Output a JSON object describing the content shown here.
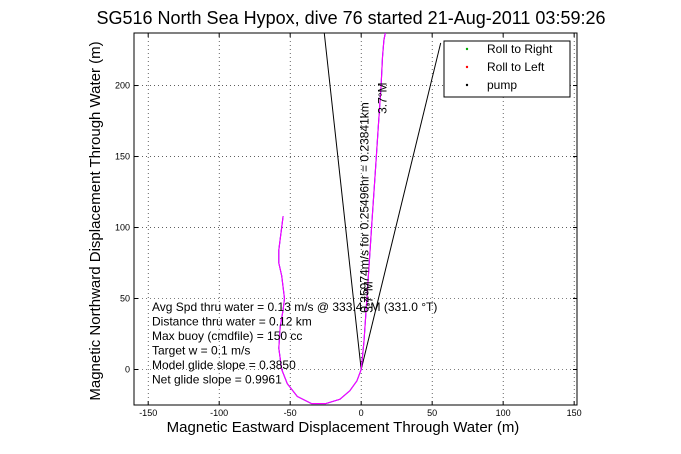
{
  "chart_data": {
    "type": "line",
    "title": "SG516 North Sea Hypox, dive 76 started 21-Aug-2011 03:59:26",
    "xlabel": "Magnetic Eastward Displacement Through Water (m)",
    "ylabel": "Magnetic Northward Displacement Through Water (m)",
    "xlim": [
      -160,
      152
    ],
    "ylim": [
      -25,
      237
    ],
    "xticks": [
      -150,
      -100,
      -50,
      0,
      50,
      100,
      150
    ],
    "yticks": [
      0,
      50,
      100,
      150,
      200
    ],
    "grid": true,
    "legend": {
      "placement": "top-right",
      "entries": [
        {
          "label": "Roll to Right",
          "color": "#00aa00",
          "marker": "dot"
        },
        {
          "label": "Roll to Left",
          "color": "#ff0000",
          "marker": "dot"
        },
        {
          "label": "pump",
          "color": "#000000",
          "marker": "dot"
        }
      ]
    },
    "series": [
      {
        "color": "#0000ff",
        "x": [
          -55,
          -56,
          -57,
          -58,
          -58,
          -56,
          -55,
          -54,
          -55,
          -57,
          -58,
          -56,
          -52,
          -45,
          -35,
          -25,
          -15,
          -8,
          -3,
          0,
          2,
          4,
          6,
          8,
          10,
          12,
          14,
          15,
          16,
          17
        ],
        "y": [
          108,
          100,
          92,
          84,
          75,
          66,
          58,
          50,
          42,
          30,
          15,
          0,
          -10,
          -19,
          -24,
          -24,
          -21,
          -15,
          -8,
          0,
          20,
          50,
          80,
          110,
          140,
          170,
          200,
          220,
          232,
          237
        ]
      },
      {
        "color": "#ff00ff",
        "x": [
          -55,
          -56,
          -57,
          -58,
          -58,
          -56,
          -55,
          -54,
          -55,
          -57,
          -58,
          -56,
          -52,
          -45,
          -35,
          -25,
          -15,
          -8,
          -3,
          0,
          2,
          4,
          6,
          8,
          10,
          12,
          14,
          15,
          16,
          17
        ],
        "y": [
          108,
          100,
          92,
          84,
          75,
          66,
          58,
          50,
          42,
          30,
          15,
          0,
          -10,
          -19,
          -24,
          -24,
          -21,
          -15,
          -8,
          0,
          20,
          50,
          80,
          110,
          140,
          170,
          200,
          220,
          232,
          237
        ]
      }
    ],
    "lines": [
      {
        "color": "#000000",
        "x": [
          0,
          -26
        ],
        "y": [
          0,
          237
        ]
      },
      {
        "color": "#000000",
        "x": [
          0,
          56
        ],
        "y": [
          0,
          230
        ]
      }
    ],
    "annotations": [
      {
        "text": "0.25974m/s for 0.25496hr = 0.23841km",
        "x": 5,
        "y": 40,
        "rotation": -90
      },
      {
        "text": "3.7°M",
        "x": 18,
        "y": 180,
        "rotation": -90
      },
      {
        "text": "3.7°M",
        "x": 8,
        "y": 40,
        "rotation": -90
      }
    ],
    "stats": [
      "Avg Spd thru water =  0.13 m/s @ 333.4   °M (331.0 °T)",
      "Distance thru water =  0.12 km",
      "Max buoy (cmdfile) = 150 cc",
      "Target w = 0.1 m/s",
      "Model glide slope = 0.3850",
      "Net glide slope = 0.9961"
    ]
  }
}
